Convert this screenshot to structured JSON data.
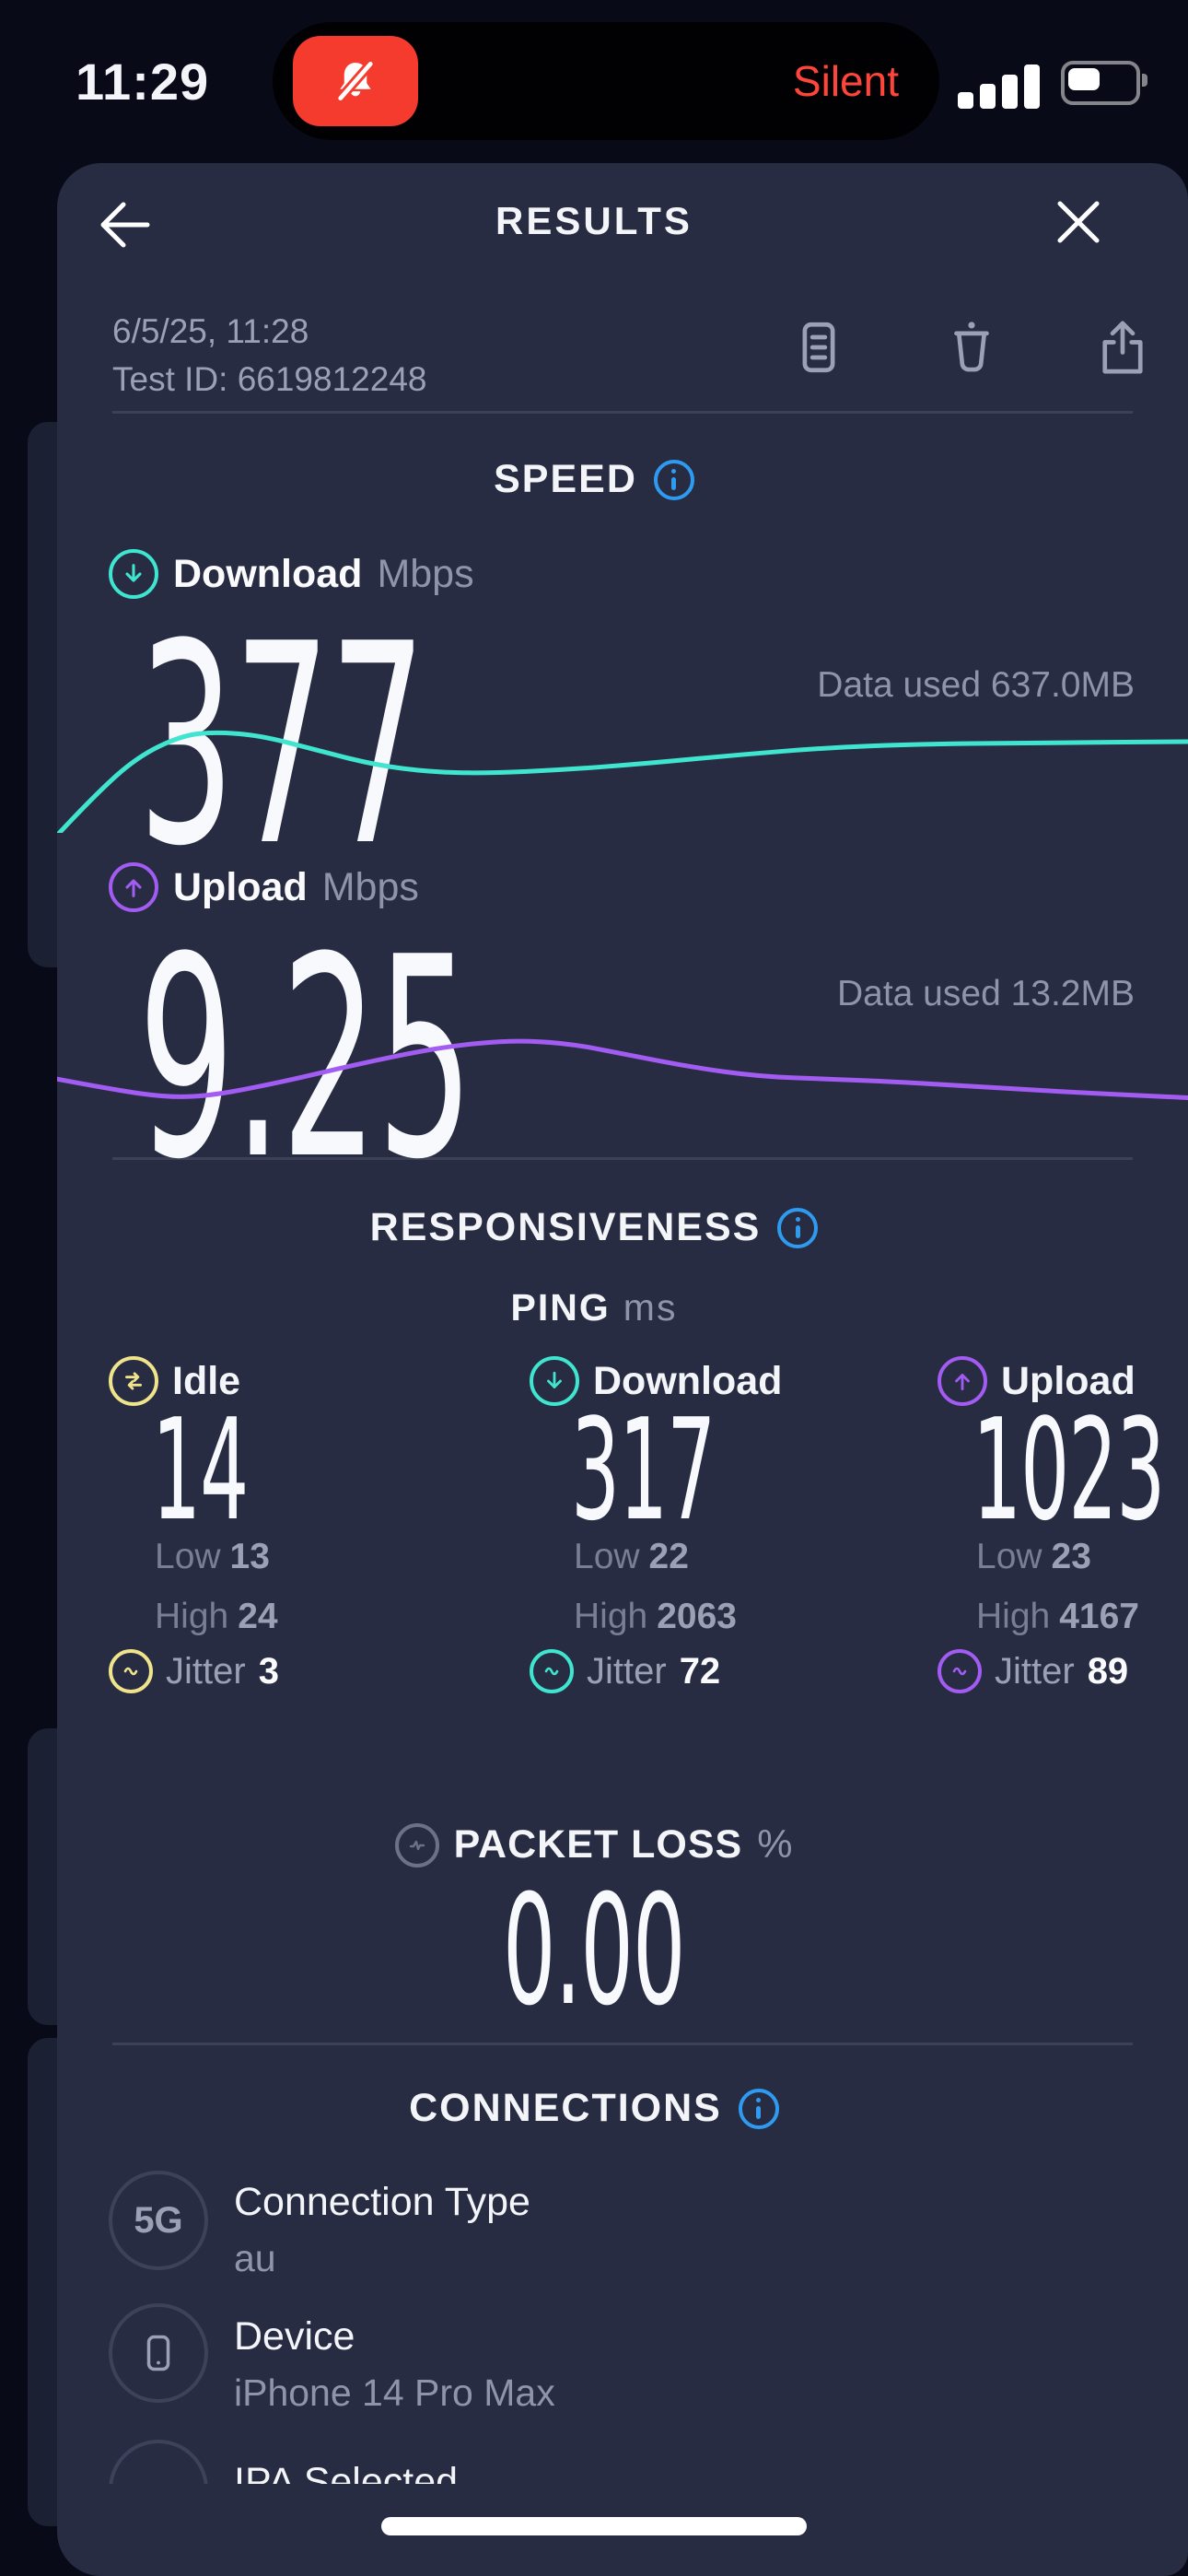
{
  "status_bar": {
    "time": "11:29",
    "silent_label": "Silent"
  },
  "header": {
    "title": "RESULTS"
  },
  "meta": {
    "date": "6/5/25, 11:28",
    "test_id": "Test ID: 6619812248"
  },
  "speed": {
    "section_title": "SPEED",
    "download": {
      "label": "Download",
      "unit": "Mbps",
      "value": "377",
      "data_used": "Data used 637.0MB",
      "color": "#40E5D0",
      "sparkline": [
        [
          0,
          1.02
        ],
        [
          0.03,
          0.72
        ],
        [
          0.07,
          0.38
        ],
        [
          0.11,
          0.2
        ],
        [
          0.14,
          0.17
        ],
        [
          0.18,
          0.2
        ],
        [
          0.23,
          0.32
        ],
        [
          0.28,
          0.44
        ],
        [
          0.33,
          0.5
        ],
        [
          0.38,
          0.51
        ],
        [
          0.45,
          0.48
        ],
        [
          0.52,
          0.43
        ],
        [
          0.6,
          0.36
        ],
        [
          0.68,
          0.3
        ],
        [
          0.76,
          0.27
        ],
        [
          0.86,
          0.26
        ],
        [
          1,
          0.25
        ]
      ]
    },
    "upload": {
      "label": "Upload",
      "unit": "Mbps",
      "value": "9.25",
      "data_used": "Data used 13.2MB",
      "color": "#A35CF1",
      "sparkline": [
        [
          0,
          0.56
        ],
        [
          0.05,
          0.64
        ],
        [
          0.1,
          0.7
        ],
        [
          0.14,
          0.68
        ],
        [
          0.2,
          0.58
        ],
        [
          0.27,
          0.44
        ],
        [
          0.34,
          0.32
        ],
        [
          0.4,
          0.27
        ],
        [
          0.45,
          0.29
        ],
        [
          0.5,
          0.37
        ],
        [
          0.56,
          0.47
        ],
        [
          0.62,
          0.54
        ],
        [
          0.68,
          0.56
        ],
        [
          0.74,
          0.58
        ],
        [
          0.82,
          0.62
        ],
        [
          0.9,
          0.66
        ],
        [
          1,
          0.7
        ]
      ]
    }
  },
  "responsiveness": {
    "section_title": "RESPONSIVENESS",
    "ping_label": "PING",
    "ping_unit": "ms",
    "columns": [
      {
        "label": "Idle",
        "value": "14",
        "low_label": "Low",
        "low": "13",
        "high_label": "High",
        "high": "24",
        "jitter_label": "Jitter",
        "jitter": "3",
        "color": "#EFE48C"
      },
      {
        "label": "Download",
        "value": "317",
        "low_label": "Low",
        "low": "22",
        "high_label": "High",
        "high": "2063",
        "jitter_label": "Jitter",
        "jitter": "72",
        "color": "#40E5D0"
      },
      {
        "label": "Upload",
        "value": "1023",
        "low_label": "Low",
        "low": "23",
        "high_label": "High",
        "high": "4167",
        "jitter_label": "Jitter",
        "jitter": "89",
        "color": "#A35CF1"
      }
    ],
    "packet_loss": {
      "label": "PACKET LOSS",
      "unit": "%",
      "value": "0.00"
    }
  },
  "connections": {
    "section_title": "CONNECTIONS",
    "rows": [
      {
        "badge": "5G",
        "title": "Connection Type",
        "subtitle": "au"
      },
      {
        "badge": "",
        "title": "Device",
        "subtitle": "iPhone 14 Pro Max"
      },
      {
        "badge": "",
        "title": "IPA Selected",
        "subtitle": ""
      }
    ]
  },
  "colors": {
    "accent_blue": "#2E9BF0",
    "teal": "#40E5D0",
    "purple": "#A35CF1",
    "yellow": "#EFE48C",
    "red": "#FF453A",
    "sheet": "#272C43"
  }
}
